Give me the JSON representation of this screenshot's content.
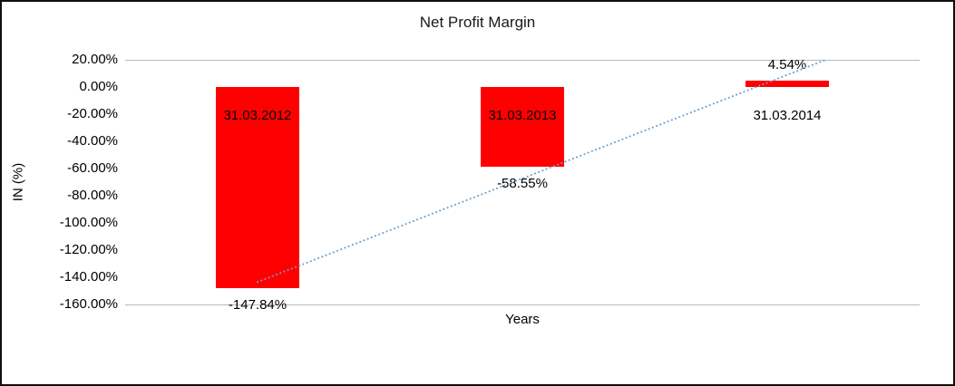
{
  "chart_data": {
    "type": "bar",
    "title": "Net Profit Margin",
    "xlabel": "Years",
    "ylabel": "IN (%)",
    "categories": [
      "31.03.2012",
      "31.03.2013",
      "31.03.2014"
    ],
    "values": [
      -147.84,
      -58.55,
      4.54
    ],
    "data_labels": [
      "-147.84%",
      "-58.55%",
      "4.54%"
    ],
    "ylim": [
      -160,
      20
    ],
    "ytick_step": 20,
    "ytick_labels": [
      "20.00%",
      "0.00%",
      "-20.00%",
      "-40.00%",
      "-60.00%",
      "-80.00%",
      "-100.00%",
      "-120.00%",
      "-140.00%",
      "-160.00%"
    ],
    "bar_color": "#ff0000",
    "grid": "horizontal lines at top (20%) and bottom (-160%) only",
    "legend": false,
    "trendline": {
      "type": "linear",
      "style": "dotted",
      "color": "#6f9fca"
    }
  }
}
